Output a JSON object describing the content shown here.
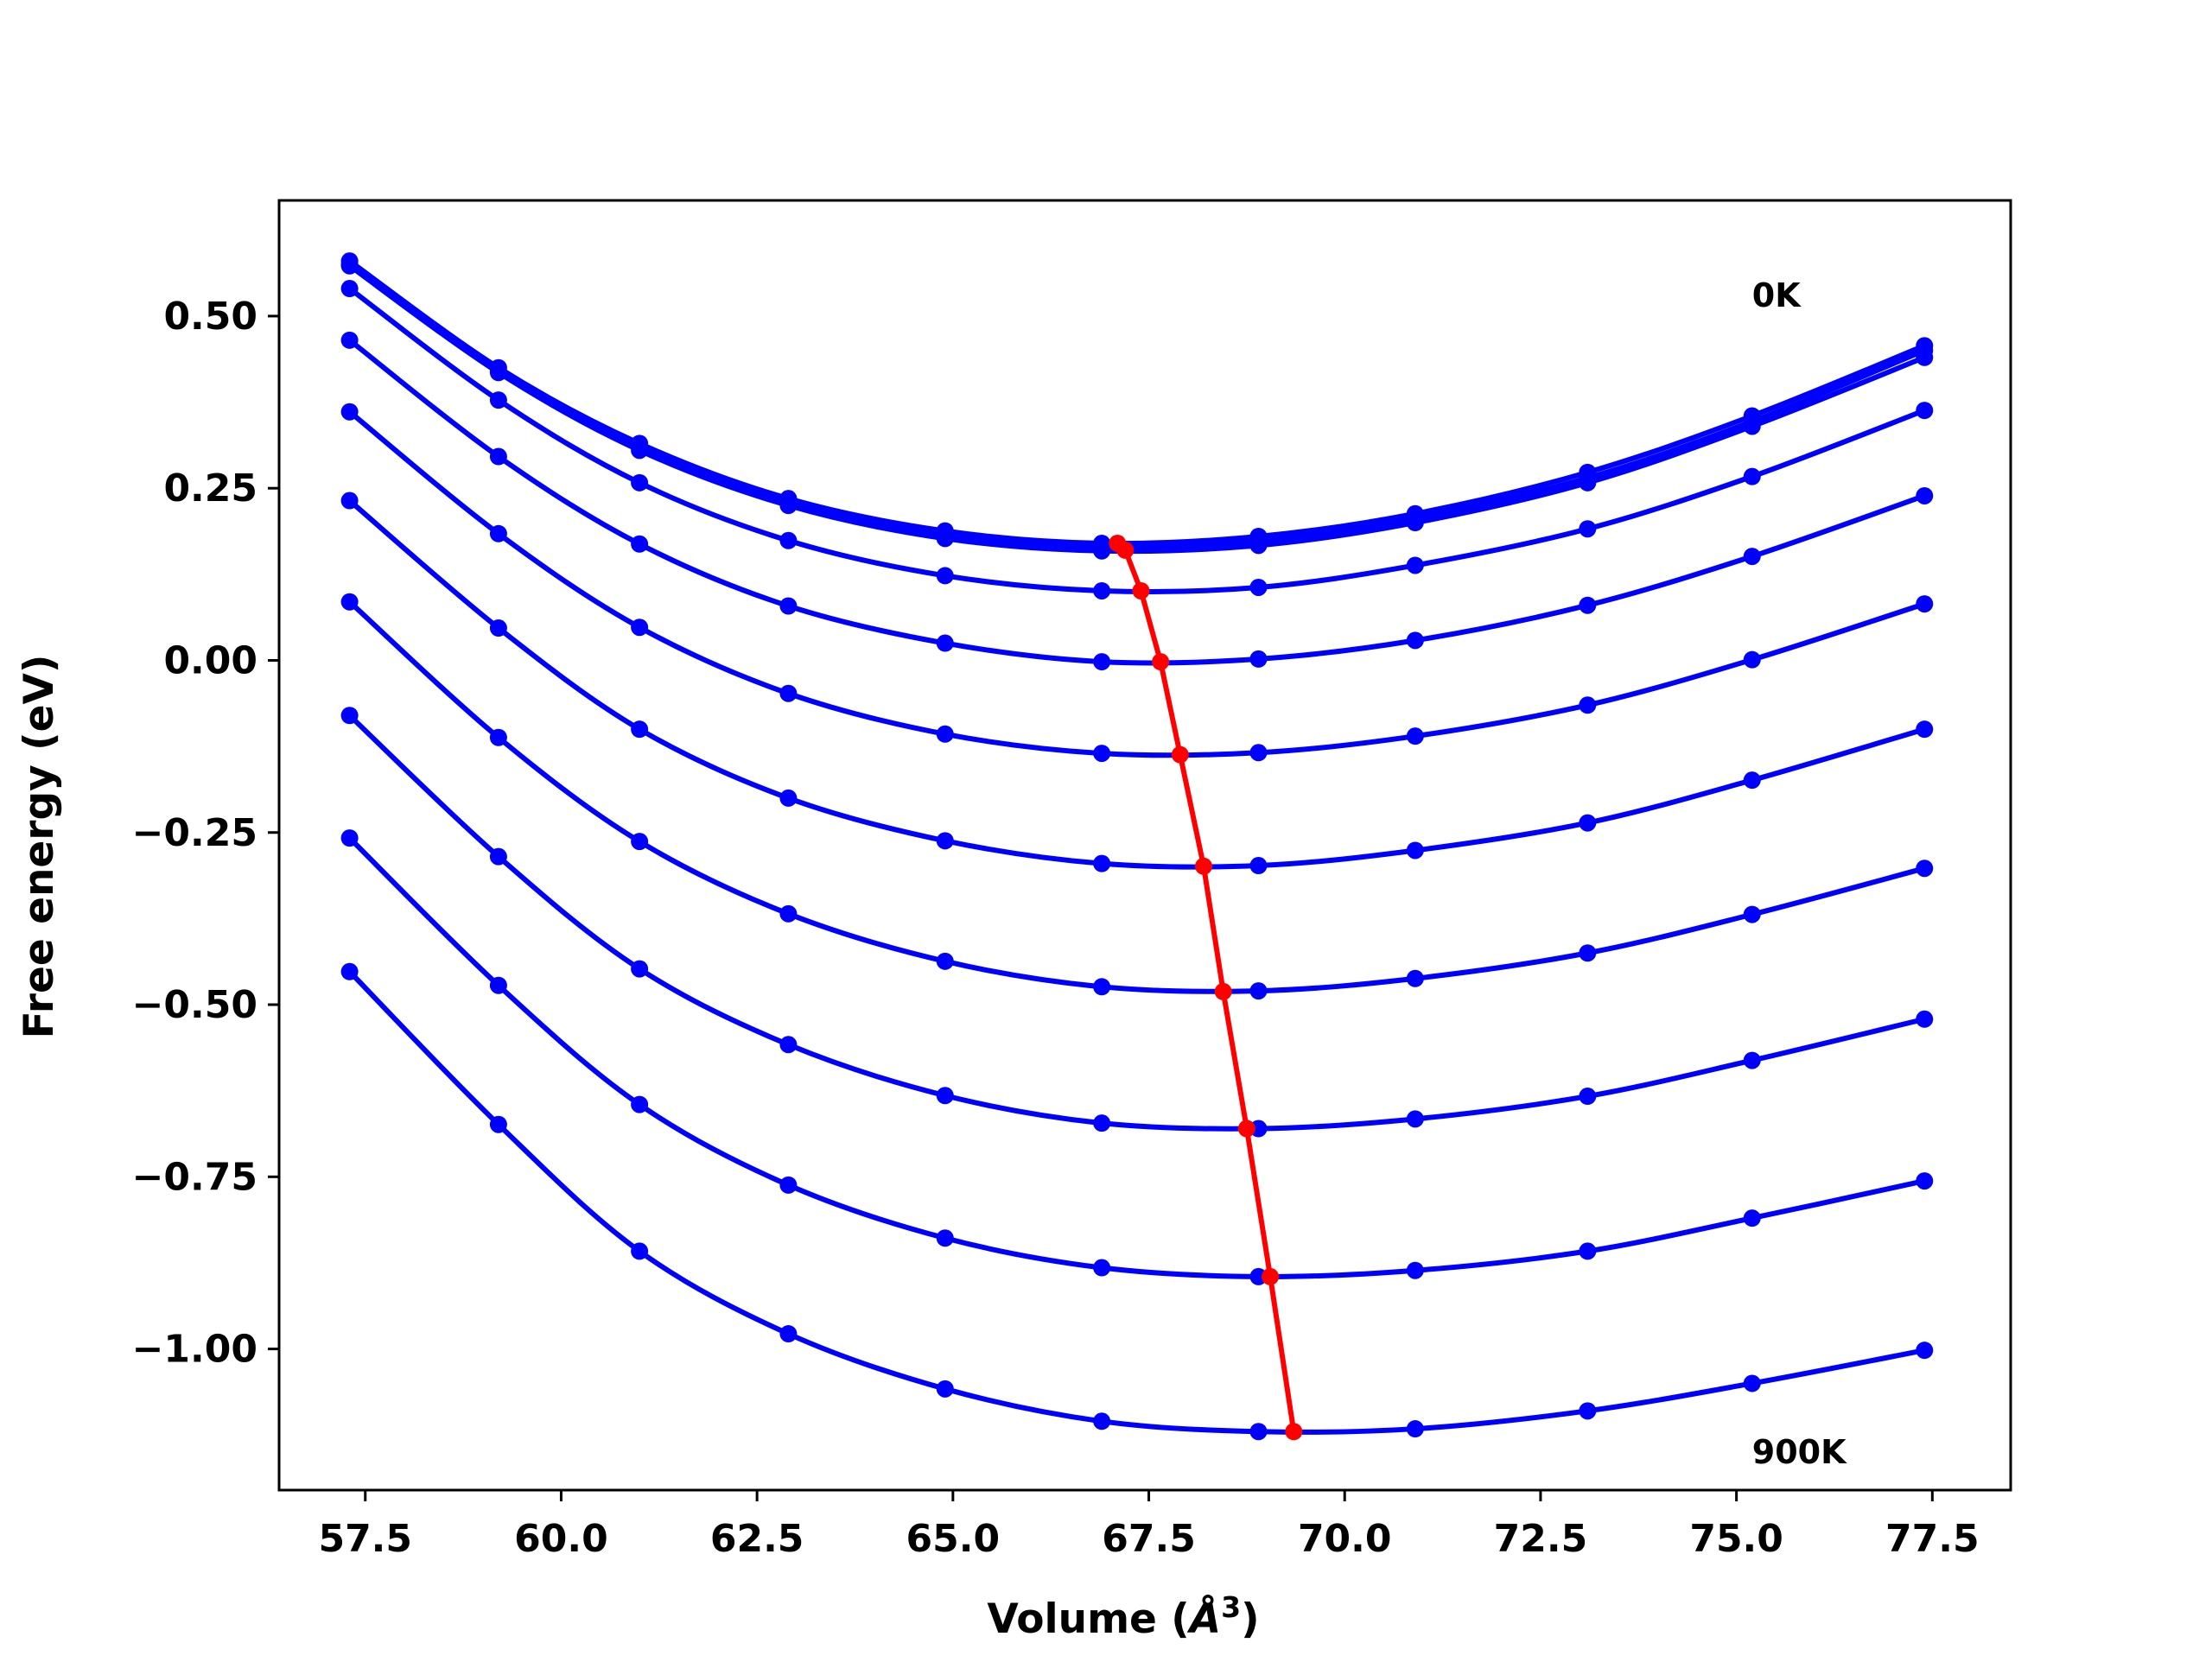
{
  "chart_data": {
    "type": "line",
    "title": "",
    "xlabel": "Volume ($\\AA^3$)",
    "xlabel_main": "Volume (",
    "xlabel_unit": "Å",
    "xlabel_sup": "3",
    "xlabel_close": ")",
    "ylabel": "Free energy (eV)",
    "xlim": [
      56.4,
      78.5
    ],
    "ylim": [
      -1.205,
      0.668
    ],
    "x_ticks": [
      57.5,
      60.0,
      62.5,
      65.0,
      67.5,
      70.0,
      72.5,
      75.0,
      77.5
    ],
    "x_tick_labels": [
      "57.5",
      "60.0",
      "62.5",
      "65.0",
      "67.5",
      "70.0",
      "72.5",
      "75.0",
      "77.5"
    ],
    "y_ticks": [
      0.5,
      0.25,
      0.0,
      -0.25,
      -0.5,
      -0.75,
      -1.0
    ],
    "y_tick_labels": [
      "0.50",
      "0.25",
      "0.00",
      "−0.25",
      "−0.50",
      "−0.75",
      "−1.00"
    ],
    "annotations": [
      {
        "text": "0K",
        "x": 75.2,
        "y": 0.53
      },
      {
        "text": "900K",
        "x": 75.2,
        "y": -1.15
      }
    ],
    "grid": false,
    "colors": {
      "curves": "#0000ff",
      "minima": "#ff0000",
      "axes": "#000000"
    },
    "volumes": [
      57.3,
      59.2,
      61.0,
      62.9,
      64.9,
      66.9,
      68.9,
      70.9,
      73.1,
      75.2,
      77.4
    ],
    "series": [
      {
        "values": [
          0.58,
          0.425,
          0.315,
          0.235,
          0.188,
          0.17,
          0.18,
          0.213,
          0.273,
          0.355,
          0.457
        ]
      },
      {
        "values": [
          0.575,
          0.42,
          0.31,
          0.23,
          0.182,
          0.165,
          0.173,
          0.207,
          0.265,
          0.347,
          0.45
        ]
      },
      {
        "values": [
          0.573,
          0.418,
          0.305,
          0.225,
          0.177,
          0.159,
          0.167,
          0.2,
          0.258,
          0.34,
          0.44
        ]
      },
      {
        "values": [
          0.54,
          0.378,
          0.258,
          0.174,
          0.123,
          0.101,
          0.106,
          0.138,
          0.191,
          0.267,
          0.363
        ]
      },
      {
        "values": [
          0.465,
          0.296,
          0.169,
          0.079,
          0.025,
          -0.002,
          0.002,
          0.029,
          0.08,
          0.151,
          0.239
        ]
      },
      {
        "values": [
          0.361,
          0.184,
          0.048,
          -0.048,
          -0.107,
          -0.135,
          -0.134,
          -0.11,
          -0.065,
          0.001,
          0.082
        ]
      },
      {
        "values": [
          0.232,
          0.047,
          -0.1,
          -0.2,
          -0.262,
          -0.295,
          -0.298,
          -0.276,
          -0.236,
          -0.174,
          -0.1
        ]
      },
      {
        "values": [
          0.085,
          -0.112,
          -0.263,
          -0.368,
          -0.437,
          -0.474,
          -0.48,
          -0.462,
          -0.425,
          -0.369,
          -0.302
        ]
      },
      {
        "values": [
          -0.08,
          -0.285,
          -0.448,
          -0.558,
          -0.632,
          -0.672,
          -0.68,
          -0.666,
          -0.633,
          -0.581,
          -0.521
        ]
      },
      {
        "values": [
          -0.258,
          -0.472,
          -0.645,
          -0.762,
          -0.839,
          -0.882,
          -0.895,
          -0.886,
          -0.858,
          -0.81,
          -0.756
        ]
      },
      {
        "values": [
          -0.452,
          -0.674,
          -0.858,
          -0.978,
          -1.058,
          -1.105,
          -1.12,
          -1.116,
          -1.09,
          -1.05,
          -1.002
        ]
      }
    ],
    "minima": {
      "x": [
        67.1,
        67.2,
        67.4,
        67.65,
        67.9,
        68.2,
        68.45,
        68.75,
        69.05,
        69.35
      ],
      "y": [
        0.17,
        0.16,
        0.101,
        -0.002,
        -0.137,
        -0.299,
        -0.481,
        -0.68,
        -0.895,
        -1.12
      ]
    }
  }
}
